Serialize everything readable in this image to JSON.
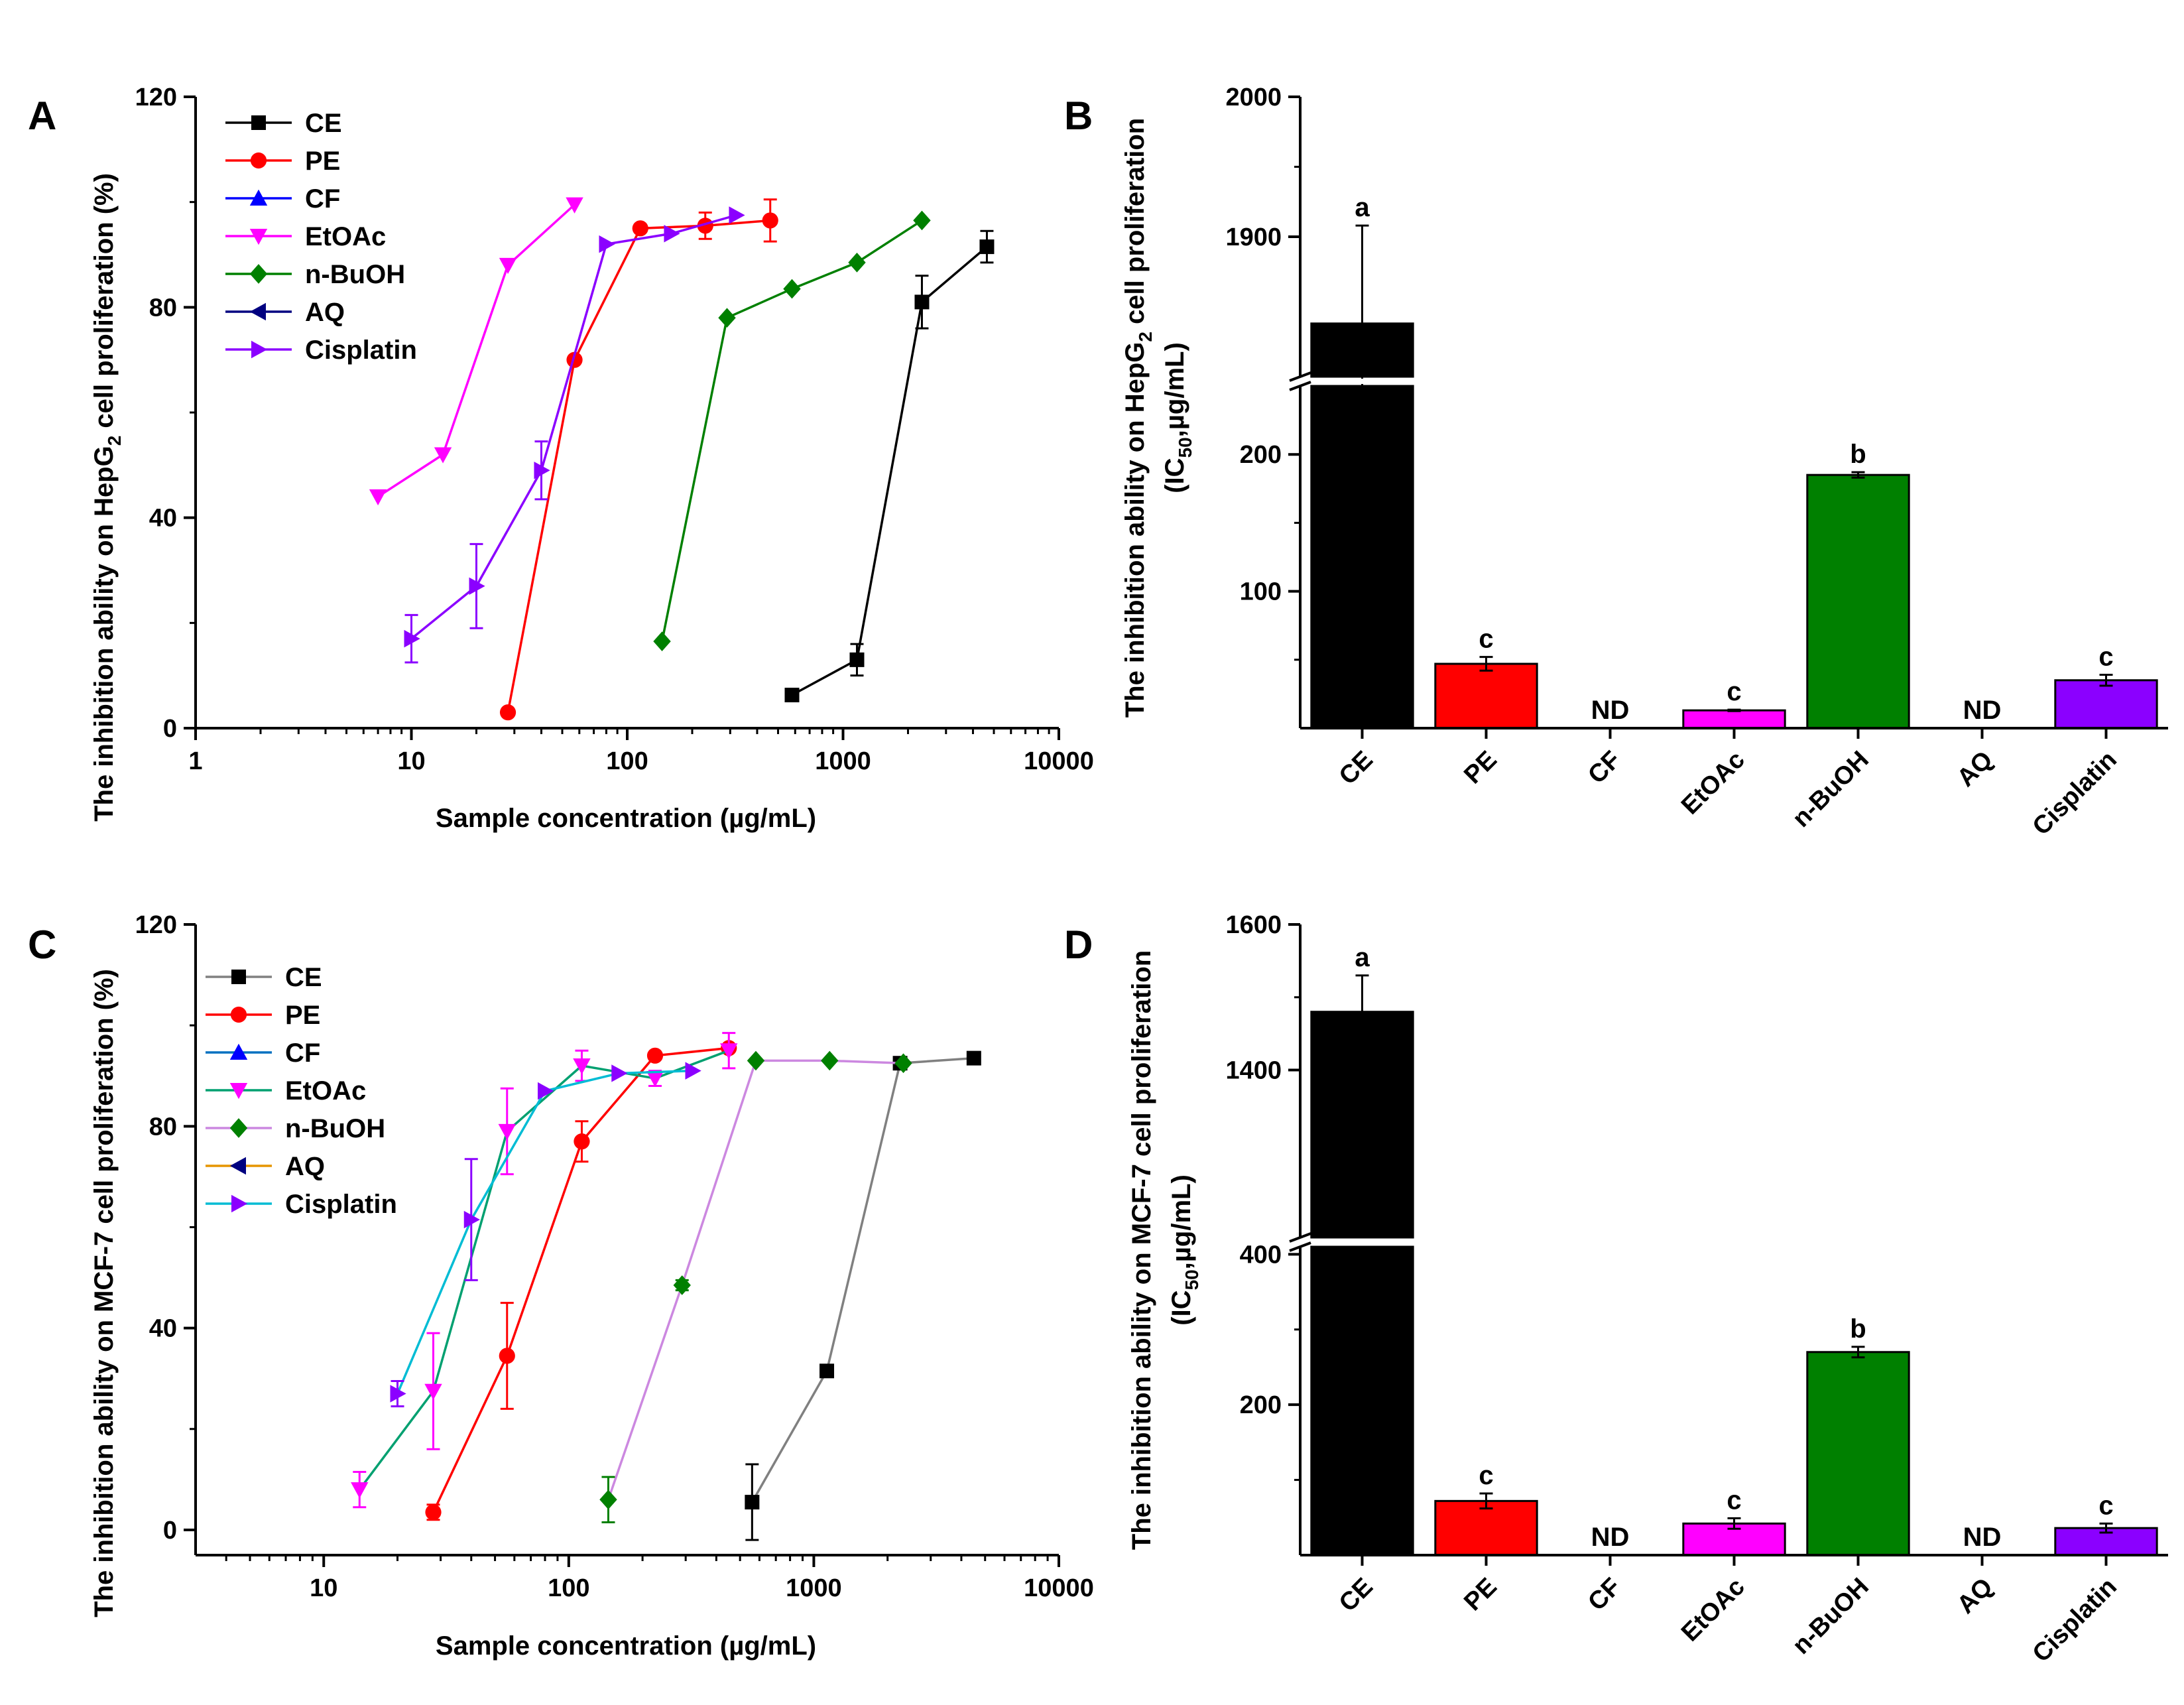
{
  "figure": {
    "panels": [
      "A",
      "B",
      "C",
      "D"
    ]
  },
  "chart_data": [
    {
      "id": "A",
      "type": "line",
      "panel_label": "A",
      "xscale": "log",
      "xlim": [
        1,
        10000
      ],
      "ylim": [
        0,
        120
      ],
      "xticks": [
        1,
        10,
        100,
        1000,
        10000
      ],
      "xtick_labels": [
        "1",
        "10",
        "100",
        "1000",
        "10000"
      ],
      "yticks": [
        0,
        40,
        80,
        120
      ],
      "ytick_labels": [
        "0",
        "40",
        "80",
        "120"
      ],
      "xlabel": "Sample concentration (µg/mL)",
      "ylabel_pre": "The inhibition ability on HepG",
      "ylabel_sub": "2",
      "ylabel_post": " cell proliferation (%)",
      "legend_position": "top-left",
      "series": [
        {
          "name": "CE",
          "color": "#000000",
          "marker": "square",
          "x": [
            580,
            1160,
            2320,
            4640
          ],
          "y": [
            6.3,
            13,
            81,
            91.5
          ],
          "err": [
            0,
            3,
            5,
            3
          ]
        },
        {
          "name": "PE",
          "color": "#ff0000",
          "marker": "circle",
          "x": [
            28,
            57,
            115,
            230,
            460
          ],
          "y": [
            3,
            70,
            95,
            95.5,
            96.5
          ],
          "err": [
            0,
            0,
            0,
            2.5,
            4
          ]
        },
        {
          "name": "CF",
          "color": "#0000ff",
          "marker": "triangle-up",
          "x": [],
          "y": [],
          "err": []
        },
        {
          "name": "EtOAc",
          "color": "#ff00ff",
          "marker": "triangle-down",
          "x": [
            7,
            14,
            28,
            57
          ],
          "y": [
            44,
            52,
            88,
            99.5
          ],
          "err": [
            0,
            0,
            0,
            0
          ]
        },
        {
          "name": "n-BuOH",
          "color": "#008000",
          "marker": "diamond",
          "x": [
            145,
            290,
            580,
            1160,
            2320
          ],
          "y": [
            16.5,
            78,
            83.5,
            88.5,
            96.5
          ],
          "err": [
            0,
            0,
            0,
            0,
            0
          ]
        },
        {
          "name": "AQ",
          "color": "#000080",
          "marker": "triangle-left",
          "x": [],
          "y": [],
          "err": []
        },
        {
          "name": "Cisplatin",
          "color": "#8b00ff",
          "marker": "triangle-right",
          "x": [
            10,
            20,
            40,
            80,
            160,
            320
          ],
          "y": [
            17,
            27,
            49,
            92,
            94,
            97.5
          ],
          "err": [
            4.5,
            8,
            5.5,
            0,
            0,
            0
          ]
        }
      ]
    },
    {
      "id": "B",
      "type": "bar",
      "panel_label": "B",
      "categories": [
        "CE",
        "PE",
        "CF",
        "EtOAc",
        "n-BuOH",
        "AQ",
        "Cisplatin"
      ],
      "values": [
        1838,
        47,
        null,
        13,
        185,
        null,
        35
      ],
      "errors": [
        70,
        5,
        0,
        0.5,
        2,
        0,
        4
      ],
      "colors": [
        "#000000",
        "#ff0000",
        "#0000ff",
        "#ff00ff",
        "#008000",
        "#000080",
        "#8b00ff"
      ],
      "labels": [
        "a",
        "c",
        "ND",
        "c",
        "b",
        "ND",
        "c"
      ],
      "broken_axis": {
        "lower": [
          0,
          250
        ],
        "upper": [
          1800,
          2000
        ]
      },
      "yticks": [
        100,
        200,
        1900,
        2000
      ],
      "ytick_labels": [
        "100",
        "200",
        "1900",
        "2000"
      ],
      "ylabel_line1_pre": "The inhibition ability on HepG",
      "ylabel_line1_sub": "2",
      "ylabel_line1_post": " cell proliferation",
      "ylabel_line2_pre": "(IC",
      "ylabel_line2_sub": "50",
      "ylabel_line2_post": ",µg/mL)"
    },
    {
      "id": "C",
      "type": "line",
      "panel_label": "C",
      "xscale": "log",
      "xlim": [
        3,
        10000
      ],
      "ylim": [
        -5,
        120
      ],
      "xticks": [
        10,
        100,
        1000,
        10000
      ],
      "xtick_labels": [
        "10",
        "100",
        "1000",
        "10000"
      ],
      "yticks": [
        0,
        40,
        80,
        120
      ],
      "ytick_labels": [
        "0",
        "40",
        "80",
        "120"
      ],
      "xlabel": "Sample concentration (µg/mL)",
      "ylabel": "The inhibition ability on MCF-7 cell proliferation (%)",
      "legend_position": "top-left",
      "series": [
        {
          "name": "CE",
          "line_color": "#808080",
          "marker_color": "#000000",
          "marker": "square",
          "x": [
            560,
            1130,
            2250,
            4500
          ],
          "y": [
            5.5,
            31.5,
            92.5,
            93.5
          ],
          "err": [
            7.5,
            0,
            0,
            0
          ]
        },
        {
          "name": "PE",
          "line_color": "#ff0000",
          "marker_color": "#ff0000",
          "marker": "circle",
          "x": [
            28,
            56,
            113,
            225,
            450
          ],
          "y": [
            3.5,
            34.5,
            77,
            94,
            95.5
          ],
          "err": [
            1.5,
            10.5,
            4,
            0,
            0
          ]
        },
        {
          "name": "CF",
          "line_color": "#0070c0",
          "marker_color": "#0000ff",
          "marker": "triangle-up",
          "x": [],
          "y": [],
          "err": []
        },
        {
          "name": "EtOAc",
          "line_color": "#00a070",
          "marker_color": "#ff00ff",
          "marker": "triangle-down",
          "x": [
            14,
            28,
            56,
            113,
            225,
            450
          ],
          "y": [
            8,
            27.5,
            79,
            92,
            89.5,
            95
          ],
          "err": [
            3.5,
            11.5,
            8.5,
            3,
            1.5,
            3.5
          ]
        },
        {
          "name": "n-BuOH",
          "line_color": "#cc88e0",
          "marker_color": "#008000",
          "marker": "diamond",
          "x": [
            145,
            290,
            580,
            1160,
            2320
          ],
          "y": [
            6,
            48.5,
            93,
            93,
            92.5
          ],
          "err": [
            4.5,
            1,
            0,
            0,
            0
          ]
        },
        {
          "name": "AQ",
          "line_color": "#e69500",
          "marker_color": "#000080",
          "marker": "triangle-left",
          "x": [],
          "y": [],
          "err": []
        },
        {
          "name": "Cisplatin",
          "line_color": "#00bcd4",
          "marker_color": "#8b00ff",
          "marker": "triangle-right",
          "x": [
            20,
            40,
            80,
            160,
            320
          ],
          "y": [
            27,
            61.5,
            87,
            90.5,
            91
          ],
          "err": [
            2.5,
            12,
            0,
            0,
            0
          ]
        }
      ]
    },
    {
      "id": "D",
      "type": "bar",
      "panel_label": "D",
      "categories": [
        "CE",
        "PE",
        "CF",
        "EtOAc",
        "n-BuOH",
        "AQ",
        "Cisplatin"
      ],
      "values": [
        1480,
        72,
        null,
        42,
        270,
        null,
        36
      ],
      "errors": [
        50,
        10,
        0,
        7,
        7,
        0,
        6
      ],
      "colors": [
        "#000000",
        "#ff0000",
        "#0000ff",
        "#ff00ff",
        "#008000",
        "#000080",
        "#8b00ff"
      ],
      "labels": [
        "a",
        "c",
        "ND",
        "c",
        "b",
        "ND",
        "c"
      ],
      "broken_axis": {
        "lower": [
          0,
          410
        ],
        "upper": [
          1170,
          1600
        ]
      },
      "yticks": [
        200,
        400,
        1400,
        1600
      ],
      "ytick_labels": [
        "200",
        "400",
        "1400",
        "1600"
      ],
      "ylabel_line1": "The inhibition ability on MCF-7 cell proliferation",
      "ylabel_line2_pre": "(IC",
      "ylabel_line2_sub": "50",
      "ylabel_line2_post": ",µg/mL)"
    }
  ]
}
